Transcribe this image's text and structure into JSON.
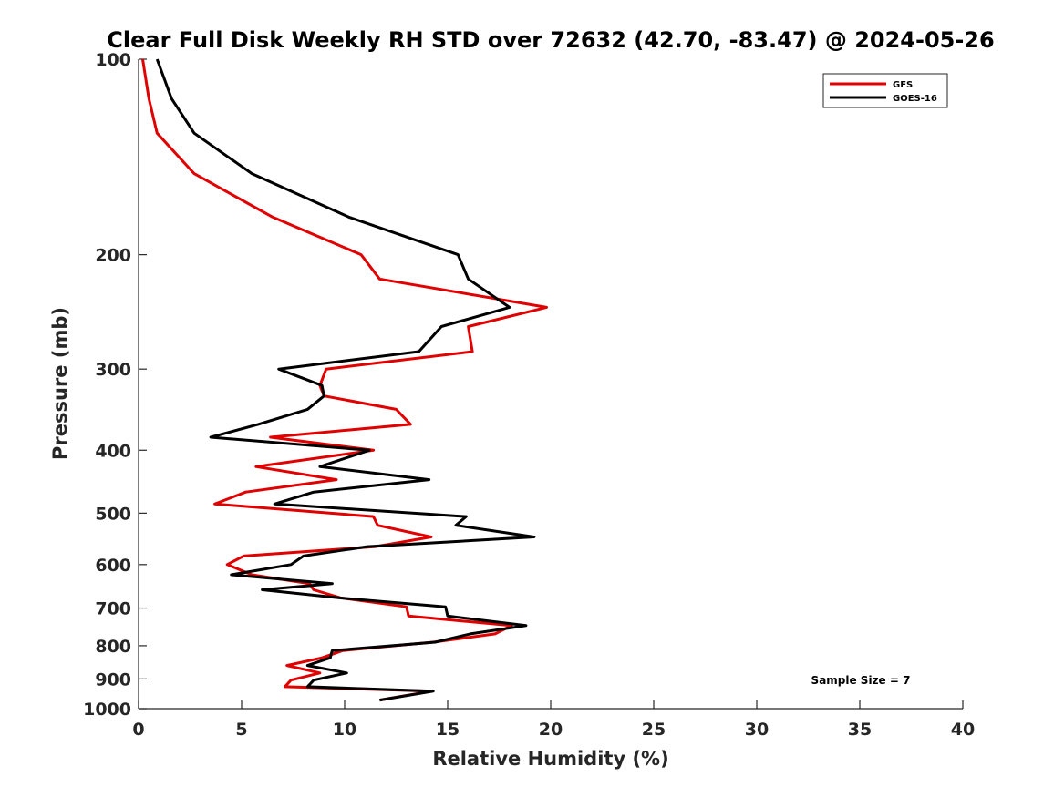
{
  "chart_data": {
    "type": "line",
    "title": "Clear Full Disk Weekly RH STD over 72632 (42.70, -83.47) @ 2024-05-26",
    "xlabel": "Relative Humidity (%)",
    "ylabel": "Pressure (mb)",
    "xlim": [
      0,
      40
    ],
    "ylim": [
      1000,
      100
    ],
    "yscale": "log",
    "x_ticks": [
      "0",
      "5",
      "10",
      "15",
      "20",
      "25",
      "30",
      "35",
      "40"
    ],
    "x_tick_values": [
      0,
      5,
      10,
      15,
      20,
      25,
      30,
      35,
      40
    ],
    "y_ticks": [
      "100",
      "200",
      "300",
      "400",
      "500",
      "600",
      "700",
      "800",
      "900",
      "1000"
    ],
    "y_tick_values": [
      100,
      200,
      300,
      400,
      500,
      600,
      700,
      800,
      900,
      1000
    ],
    "grid": false,
    "legend_position": "top-right",
    "annotation": "Sample Size = 7",
    "series": [
      {
        "name": "GFS",
        "color": "#e00000",
        "points": [
          [
            0.2,
            100
          ],
          [
            0.5,
            115
          ],
          [
            0.9,
            130
          ],
          [
            2.7,
            150
          ],
          [
            6.5,
            175
          ],
          [
            10.8,
            200
          ],
          [
            11.7,
            218
          ],
          [
            19.8,
            241
          ],
          [
            16.0,
            258
          ],
          [
            16.2,
            282
          ],
          [
            9.1,
            300
          ],
          [
            8.8,
            318
          ],
          [
            9.0,
            330
          ],
          [
            12.5,
            346
          ],
          [
            13.2,
            365
          ],
          [
            6.4,
            382
          ],
          [
            11.4,
            400
          ],
          [
            5.7,
            424
          ],
          [
            9.6,
            444
          ],
          [
            5.2,
            464
          ],
          [
            3.7,
            484
          ],
          [
            11.4,
            506
          ],
          [
            11.6,
            522
          ],
          [
            14.2,
            544
          ],
          [
            11.5,
            563
          ],
          [
            5.1,
            582
          ],
          [
            4.3,
            600
          ],
          [
            5.5,
            622
          ],
          [
            8.3,
            642
          ],
          [
            8.5,
            656
          ],
          [
            9.8,
            675
          ],
          [
            13.0,
            697
          ],
          [
            13.1,
            720
          ],
          [
            18.1,
            745
          ],
          [
            17.3,
            767
          ],
          [
            14.3,
            790
          ],
          [
            9.9,
            814
          ],
          [
            8.9,
            835
          ],
          [
            7.2,
            858
          ],
          [
            8.8,
            881
          ],
          [
            7.4,
            904
          ],
          [
            7.1,
            925
          ],
          [
            14.2,
            940
          ],
          [
            11.7,
            970
          ]
        ]
      },
      {
        "name": "GOES-16",
        "color": "#000000",
        "points": [
          [
            0.9,
            100
          ],
          [
            1.6,
            115
          ],
          [
            2.7,
            130
          ],
          [
            5.5,
            150
          ],
          [
            10.2,
            175
          ],
          [
            15.5,
            200
          ],
          [
            16.0,
            218
          ],
          [
            18.0,
            241
          ],
          [
            14.7,
            258
          ],
          [
            13.6,
            282
          ],
          [
            6.8,
            300
          ],
          [
            8.9,
            318
          ],
          [
            9.0,
            330
          ],
          [
            8.2,
            346
          ],
          [
            5.8,
            365
          ],
          [
            3.5,
            382
          ],
          [
            11.2,
            400
          ],
          [
            8.8,
            424
          ],
          [
            14.1,
            444
          ],
          [
            8.5,
            464
          ],
          [
            6.6,
            484
          ],
          [
            15.9,
            506
          ],
          [
            15.4,
            522
          ],
          [
            19.2,
            544
          ],
          [
            11.1,
            563
          ],
          [
            8.0,
            582
          ],
          [
            7.4,
            600
          ],
          [
            4.5,
            622
          ],
          [
            9.4,
            642
          ],
          [
            6.0,
            656
          ],
          [
            9.7,
            675
          ],
          [
            14.9,
            697
          ],
          [
            15.0,
            720
          ],
          [
            18.8,
            745
          ],
          [
            16.1,
            767
          ],
          [
            14.4,
            790
          ],
          [
            9.4,
            814
          ],
          [
            9.3,
            835
          ],
          [
            8.2,
            858
          ],
          [
            10.1,
            881
          ],
          [
            8.5,
            904
          ],
          [
            8.2,
            925
          ],
          [
            14.3,
            940
          ],
          [
            11.7,
            970
          ]
        ]
      }
    ]
  }
}
